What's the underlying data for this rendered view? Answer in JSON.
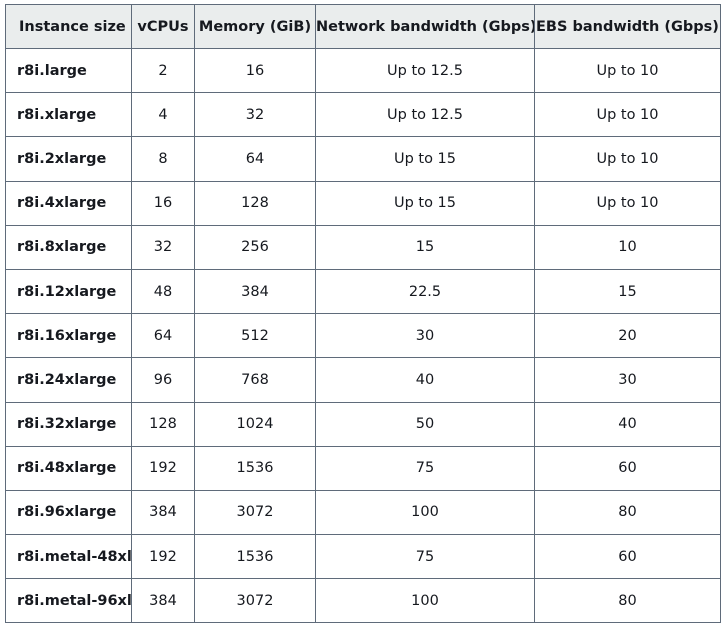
{
  "table": {
    "columns": [
      "Instance size",
      "vCPUs",
      "Memory (GiB)",
      "Network bandwidth (Gbps)",
      "EBS bandwidth (Gbps)"
    ],
    "rows": [
      [
        "r8i.large",
        "2",
        "16",
        "Up to 12.5",
        "Up to 10"
      ],
      [
        "r8i.xlarge",
        "4",
        "32",
        "Up to 12.5",
        "Up to 10"
      ],
      [
        "r8i.2xlarge",
        "8",
        "64",
        "Up to 15",
        "Up to 10"
      ],
      [
        "r8i.4xlarge",
        "16",
        "128",
        "Up to 15",
        "Up to 10"
      ],
      [
        "r8i.8xlarge",
        "32",
        "256",
        "15",
        "10"
      ],
      [
        "r8i.12xlarge",
        "48",
        "384",
        "22.5",
        "15"
      ],
      [
        "r8i.16xlarge",
        "64",
        "512",
        "30",
        "20"
      ],
      [
        "r8i.24xlarge",
        "96",
        "768",
        "40",
        "30"
      ],
      [
        "r8i.32xlarge",
        "128",
        "1024",
        "50",
        "40"
      ],
      [
        "r8i.48xlarge",
        "192",
        "1536",
        "75",
        "60"
      ],
      [
        "r8i.96xlarge",
        "384",
        "3072",
        "100",
        "80"
      ],
      [
        "r8i.metal-48xl",
        "192",
        "1536",
        "75",
        "60"
      ],
      [
        "r8i.metal-96xl",
        "384",
        "3072",
        "100",
        "80"
      ]
    ]
  }
}
